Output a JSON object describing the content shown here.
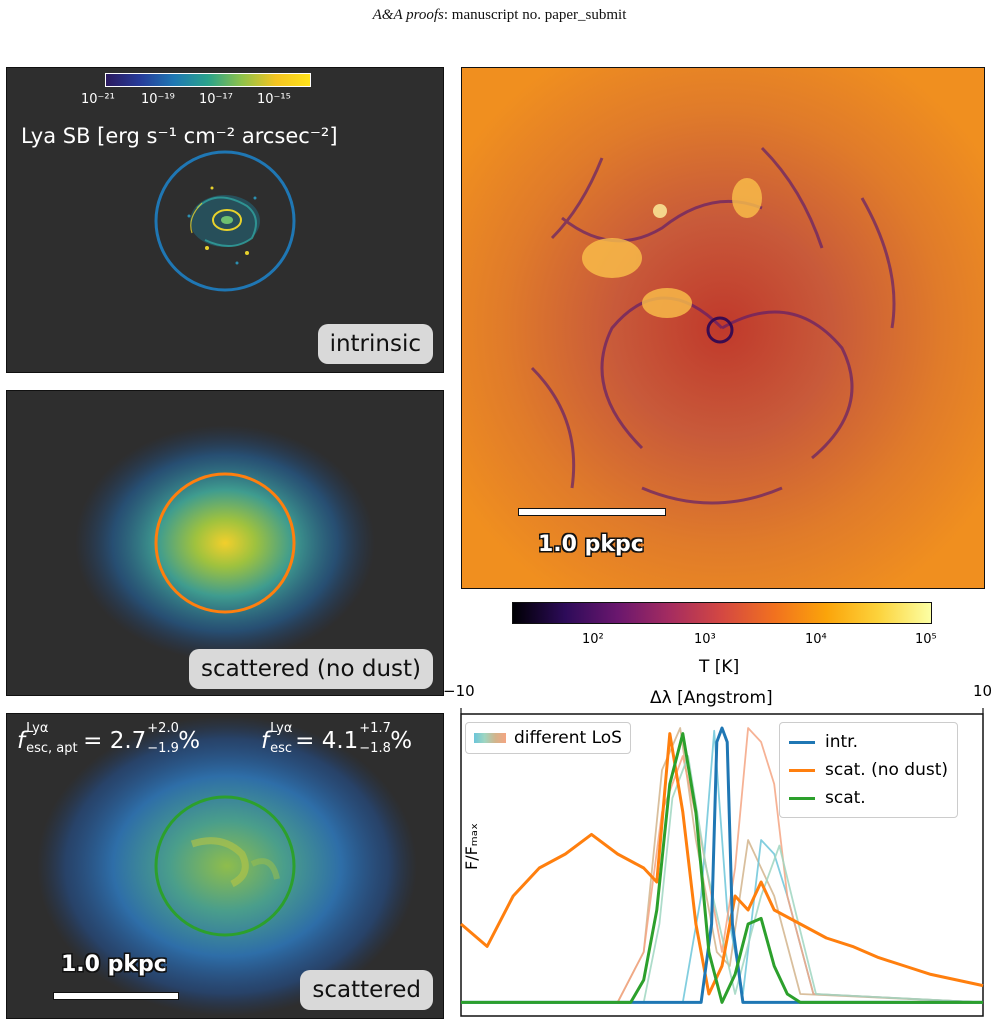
{
  "header": {
    "journal": "A&A proofs",
    "rest": ": manuscript no. paper_submit"
  },
  "colors": {
    "panel_bg": "#2e2e2e",
    "intrinsic_circle": "#1f77b4",
    "scattered_nodust_circle": "#ff7f0e",
    "scattered_circle": "#2ca02c"
  },
  "sb_colorbar": {
    "label": "Lya SB [erg s⁻¹ cm⁻² arcsec⁻²]",
    "ticks": [
      "10⁻²¹",
      "10⁻¹⁹",
      "10⁻¹⁷",
      "10⁻¹⁵"
    ]
  },
  "panels": {
    "intrinsic": "intrinsic",
    "scattered_nodust": "scattered (no dust)",
    "scattered": "scattered",
    "scalebar": "1.0 pkpc",
    "fesc_apt": "fₑₛ꜀,ₐₚₜ",
    "fesc_apt_value": "= 2.7",
    "fesc_apt_up": "+2.0",
    "fesc_apt_down": "−1.9",
    "fesc": "fₑₛ꜀",
    "fesc_value": "= 4.1",
    "fesc_up": "+1.7",
    "fesc_down": "−1.8",
    "lya_sup": "Lyα",
    "percent": "%"
  },
  "temperature_map": {
    "scalebar": "1.0 pkpc",
    "colorbar_label": "T [K]",
    "colorbar_ticks": [
      "10²",
      "10³",
      "10⁴",
      "10⁵"
    ]
  },
  "chart_data": {
    "type": "line",
    "title": "",
    "xlabel": "Δλ [Angstrom]",
    "ylabel": "F/Fₘₐₓ",
    "xlim": [
      -10,
      10
    ],
    "ylim": [
      0,
      1.05
    ],
    "x_ticks": [
      "−10",
      "10"
    ],
    "legend_left": [
      "different LoS"
    ],
    "legend_right": [
      "intr.",
      "scat. (no dust)",
      "scat."
    ],
    "series": [
      {
        "name": "intr.",
        "color": "#1f77b4",
        "x": [
          -10,
          -0.8,
          -0.4,
          -0.2,
          0,
          0.2,
          0.4,
          0.8,
          10
        ],
        "y": [
          0.02,
          0.02,
          0.3,
          0.95,
          1.0,
          0.95,
          0.3,
          0.02,
          0.02
        ]
      },
      {
        "name": "scat. (no dust)",
        "color": "#ff7f0e",
        "x": [
          -10,
          -9,
          -8,
          -7,
          -6,
          -5,
          -4,
          -3,
          -2.5,
          -2,
          -1.5,
          -1,
          -0.5,
          0,
          0.5,
          1,
          1.5,
          2,
          3,
          4,
          5,
          6,
          7,
          8,
          9,
          10
        ],
        "y": [
          0.3,
          0.22,
          0.4,
          0.5,
          0.55,
          0.62,
          0.55,
          0.5,
          0.45,
          0.98,
          0.7,
          0.3,
          0.05,
          0.15,
          0.4,
          0.35,
          0.45,
          0.35,
          0.3,
          0.25,
          0.22,
          0.18,
          0.15,
          0.12,
          0.1,
          0.08
        ]
      },
      {
        "name": "scat.",
        "color": "#2ca02c",
        "x": [
          -10,
          -3.5,
          -3,
          -2.5,
          -2,
          -1.5,
          -1,
          -0.5,
          0,
          0.5,
          1,
          1.5,
          2,
          2.5,
          3,
          10
        ],
        "y": [
          0.02,
          0.02,
          0.1,
          0.35,
          0.8,
          0.98,
          0.7,
          0.2,
          0.02,
          0.12,
          0.3,
          0.32,
          0.15,
          0.05,
          0.02,
          0.02
        ]
      }
    ],
    "los_series": [
      {
        "color": "#d2b48c",
        "x": [
          -10,
          -4,
          -3,
          -2.3,
          -1.6,
          -1,
          -0.2,
          0.3,
          1,
          2,
          3,
          10
        ],
        "y": [
          0.02,
          0.02,
          0.2,
          0.85,
          1.0,
          0.6,
          0.2,
          0.15,
          0.6,
          0.4,
          0.05,
          0.02
        ]
      },
      {
        "color": "#6cc5d9",
        "x": [
          -10,
          -1.5,
          -0.8,
          -0.3,
          0.2,
          0.8,
          1.5,
          2,
          2.5,
          3.5,
          10
        ],
        "y": [
          0.02,
          0.02,
          0.4,
          0.99,
          0.35,
          0.05,
          0.6,
          0.55,
          0.4,
          0.05,
          0.02
        ]
      },
      {
        "color": "#f4a582",
        "x": [
          -10,
          -4,
          -3,
          -2.3,
          -1.5,
          -0.8,
          0,
          0.5,
          1,
          1.5,
          2,
          2.5,
          3.5,
          10
        ],
        "y": [
          0.02,
          0.02,
          0.2,
          0.7,
          0.9,
          0.6,
          0.2,
          0.5,
          1.0,
          0.95,
          0.8,
          0.4,
          0.05,
          0.02
        ]
      },
      {
        "color": "#9fd6c1",
        "x": [
          -10,
          -3,
          -2.4,
          -1.9,
          -1.3,
          -0.6,
          0.5,
          1.5,
          2.2,
          2.8,
          3.6,
          10
        ],
        "y": [
          0.02,
          0.02,
          0.3,
          0.75,
          0.9,
          0.5,
          0.05,
          0.4,
          0.58,
          0.35,
          0.05,
          0.02
        ]
      }
    ]
  }
}
